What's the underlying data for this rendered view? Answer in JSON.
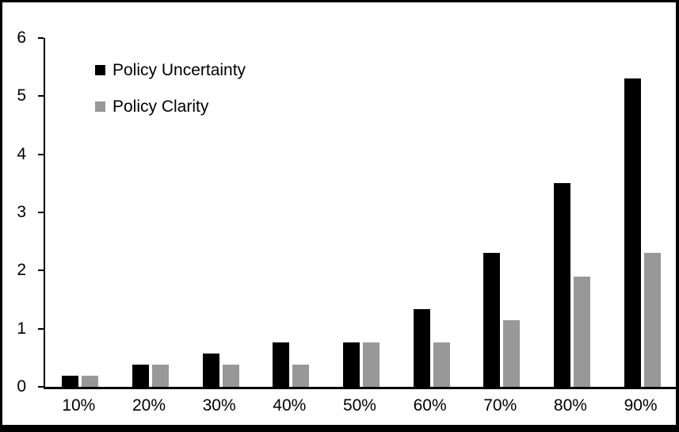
{
  "figure": {
    "background": "#FFFFFF",
    "border_color": "#000000"
  },
  "chart_data": {
    "type": "bar",
    "title": "",
    "xlabel": "",
    "ylabel": "",
    "categories": [
      "10%",
      "20%",
      "30%",
      "40%",
      "50%",
      "60%",
      "70%",
      "80%",
      "90%"
    ],
    "series": [
      {
        "name": "Policy Uncertainty",
        "color": "#000000",
        "values": [
          0.19,
          0.38,
          0.57,
          0.76,
          0.77,
          1.33,
          2.3,
          3.5,
          5.3
        ]
      },
      {
        "name": "Policy Clarity",
        "color": "#989898",
        "values": [
          0.19,
          0.38,
          0.38,
          0.38,
          0.76,
          0.77,
          1.15,
          1.9,
          2.3
        ]
      }
    ],
    "ylim": [
      0,
      6
    ],
    "yticks": [
      0,
      1,
      2,
      3,
      4,
      5,
      6
    ],
    "grid": false,
    "legend_position": "top-left"
  }
}
